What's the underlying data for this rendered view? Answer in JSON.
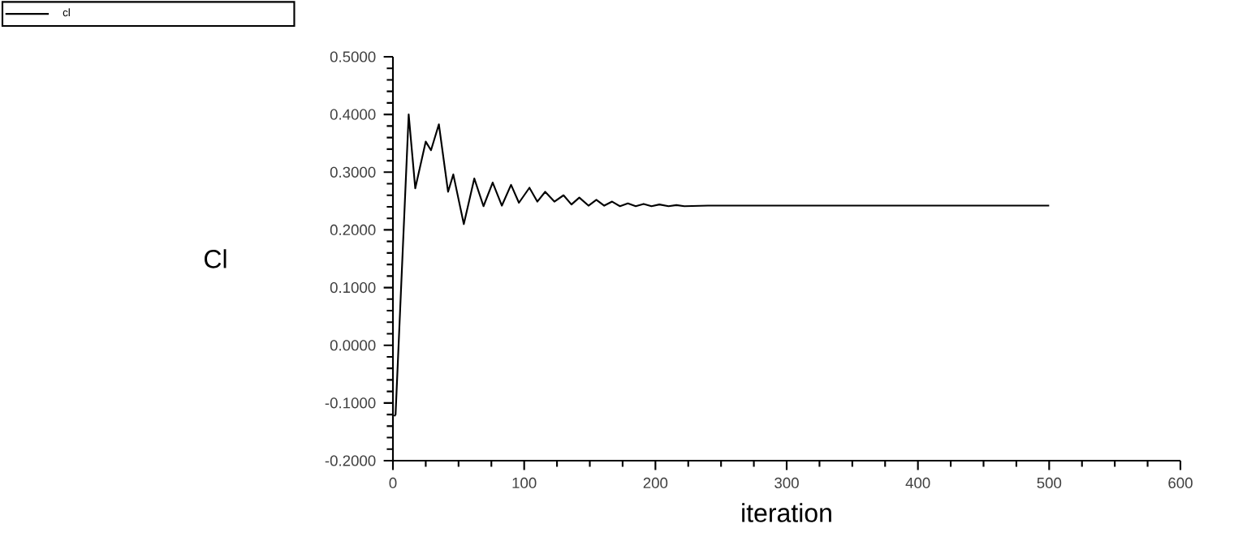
{
  "chart_data": {
    "type": "line",
    "xlabel": "iteration",
    "ylabel": "Cl",
    "legend": "top left",
    "grid": false,
    "xlim": [
      0,
      600
    ],
    "ylim": [
      -0.2,
      0.5
    ],
    "xticks": [
      0,
      100,
      200,
      300,
      400,
      500,
      600
    ],
    "yticks": [
      {
        "value": -0.2,
        "label": "-0.2000"
      },
      {
        "value": -0.1,
        "label": "-0.1000"
      },
      {
        "value": 0,
        "label": "0.0000"
      },
      {
        "value": 0.1,
        "label": "0.1000"
      },
      {
        "value": 0.2,
        "label": "0.2000"
      },
      {
        "value": 0.3,
        "label": "0.3000"
      },
      {
        "value": 0.4,
        "label": "0.4000"
      },
      {
        "value": 0.5,
        "label": "0.5000"
      }
    ],
    "series": [
      {
        "name": "cl",
        "color": "#000000",
        "x": [
          1,
          2,
          12,
          17,
          25,
          29,
          35,
          42,
          46,
          54,
          62,
          69,
          76,
          83,
          90,
          96,
          104,
          110,
          116,
          123,
          130,
          136,
          142,
          149,
          155,
          161,
          167,
          173,
          179,
          185,
          191,
          197,
          203,
          210,
          216,
          222,
          240,
          300,
          500
        ],
        "values": [
          -0.123,
          -0.12,
          0.4,
          0.272,
          0.353,
          0.338,
          0.383,
          0.266,
          0.296,
          0.21,
          0.289,
          0.241,
          0.282,
          0.242,
          0.278,
          0.247,
          0.273,
          0.249,
          0.266,
          0.249,
          0.26,
          0.244,
          0.256,
          0.242,
          0.252,
          0.242,
          0.249,
          0.241,
          0.246,
          0.241,
          0.245,
          0.241,
          0.244,
          0.241,
          0.243,
          0.241,
          0.242,
          0.242,
          0.242
        ]
      }
    ]
  }
}
